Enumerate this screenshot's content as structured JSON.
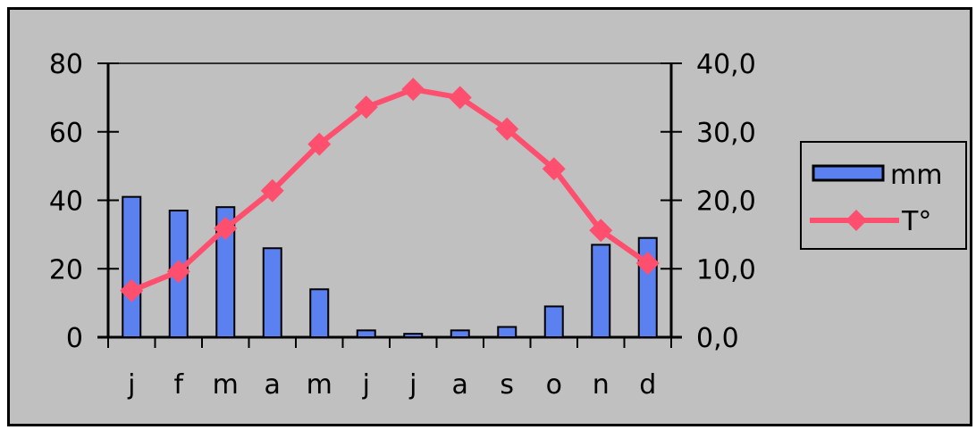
{
  "chart_data": {
    "type": "bar+line",
    "categories": [
      "j",
      "f",
      "m",
      "a",
      "m",
      "j",
      "j",
      "a",
      "s",
      "o",
      "n",
      "d"
    ],
    "series": [
      {
        "name": "mm",
        "type": "bar",
        "axis": "left",
        "color": "#5b80f0",
        "values": [
          41,
          37,
          38,
          26,
          14,
          2,
          1,
          2,
          3,
          9,
          27,
          29
        ]
      },
      {
        "name": "T°",
        "type": "line",
        "axis": "right",
        "color": "#ff4f6e",
        "values": [
          6.8,
          9.6,
          15.9,
          21.4,
          28.2,
          33.6,
          36.2,
          35.0,
          30.4,
          24.6,
          15.6,
          10.8
        ]
      }
    ],
    "y_left": {
      "range": [
        0,
        80
      ],
      "ticks": [
        "0",
        "20",
        "40",
        "60",
        "80"
      ]
    },
    "y_right": {
      "range": [
        0,
        40
      ],
      "ticks": [
        "0,0",
        "10,0",
        "20,0",
        "30,0",
        "40,0"
      ]
    },
    "legend_position": "right",
    "grid": false,
    "plot_background": "#c0c0c0"
  }
}
